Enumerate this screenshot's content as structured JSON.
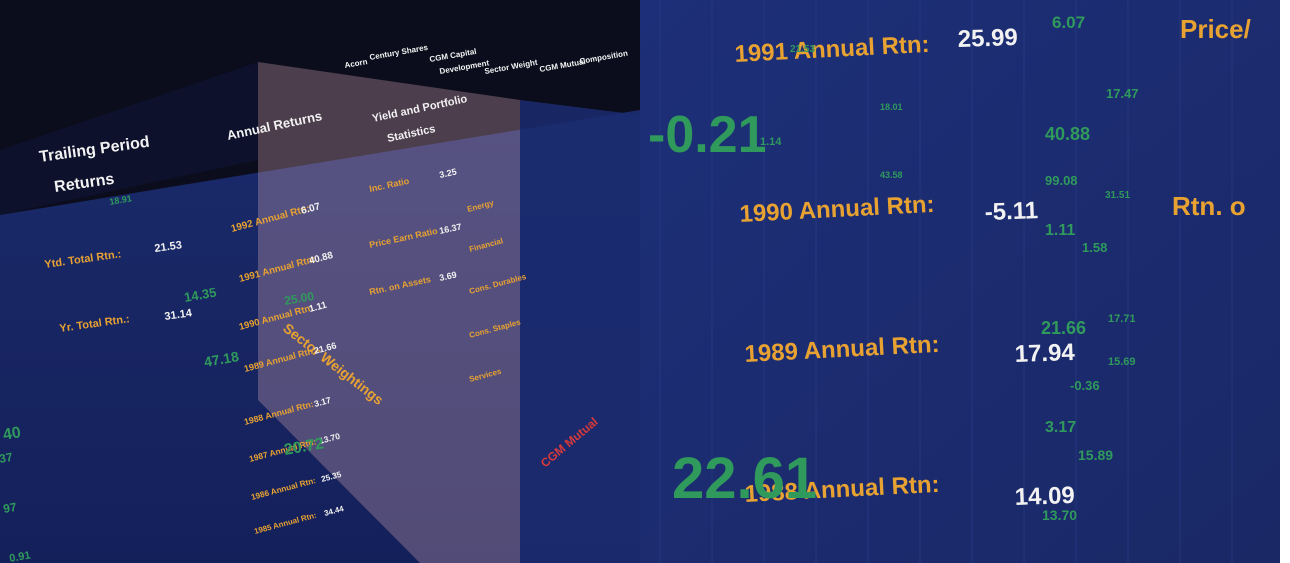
{
  "left": {
    "headings": [
      "Trailing Period",
      "Returns",
      "Annual Returns",
      "Yield and Portfolio",
      "Statistics",
      "Sector Weightings",
      "CGM Mutual"
    ],
    "columns": [
      "Acorn",
      "Century Shares",
      "CGM Capital",
      "Development",
      "Sector Weight",
      "CGM Mutual",
      "Composition"
    ],
    "trailing": [
      {
        "label": "Ytd. Total Rtn.:",
        "value": "21.53"
      },
      {
        "label": "Yr. Total Rtn.:",
        "value": "31.14"
      }
    ],
    "annual": [
      {
        "label": "1992 Annual Rtn:",
        "value": "6.07"
      },
      {
        "label": "1991 Annual Rtn:",
        "value": "40.88"
      },
      {
        "label": "1990 Annual Rtn:",
        "value": "1.11"
      },
      {
        "label": "1989 Annual Rtn:",
        "value": "21.66"
      },
      {
        "label": "1988 Annual Rtn:",
        "value": "3.17"
      },
      {
        "label": "1987 Annual Rtn:",
        "value": "13.70"
      },
      {
        "label": "1986 Annual Rtn:",
        "value": "25.35"
      },
      {
        "label": "1985 Annual Rtn:",
        "value": "34.44"
      }
    ],
    "stats": [
      {
        "label": "Inc. Ratio",
        "value": "3.25"
      },
      {
        "label": "Price Earn Ratio",
        "value": "16.37"
      },
      {
        "label": "Rtn. on Assets",
        "value": "3.69"
      }
    ],
    "sectors": [
      "Energy",
      "Financial",
      "Cons. Durables",
      "Cons. Staples",
      "Services"
    ],
    "floating": [
      "18.91",
      "14.35",
      "47.18",
      "25.00",
      "20.72",
      "40",
      "37",
      "97",
      "0.91"
    ]
  },
  "right": {
    "annual": [
      {
        "label": "1991 Annual Rtn:",
        "value": "25.99"
      },
      {
        "label": "1990 Annual Rtn:",
        "value": "-5.11"
      },
      {
        "label": "1989 Annual Rtn:",
        "value": "17.94"
      },
      {
        "label": "1988 Annual Rtn:",
        "value": "14.09"
      }
    ],
    "headings": [
      "Price/",
      "Rtn. o"
    ],
    "big": [
      "-0.21",
      "22.61"
    ],
    "floating": [
      "6.07",
      "17.47",
      "40.88",
      "99.08",
      "21.66",
      "15.69",
      "-0.36",
      "3.17",
      "15.89",
      "13.70",
      "1.11",
      "1.58",
      "17.71",
      "1.14",
      "21.53",
      "18.01",
      "43.58",
      "31.51"
    ]
  }
}
